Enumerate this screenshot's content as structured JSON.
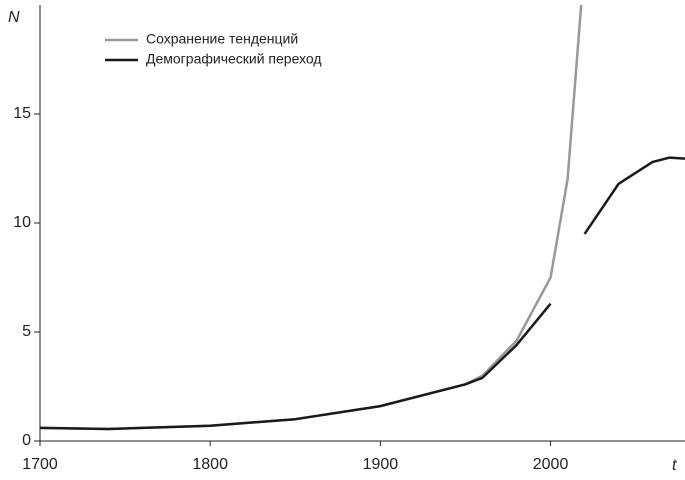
{
  "chart_data": {
    "type": "line",
    "x_label": "t",
    "y_label": "N",
    "x": [
      1700,
      1740,
      1800,
      1850,
      1900,
      1950,
      1960,
      1980,
      2000,
      2010,
      2015,
      2018,
      2020,
      2040,
      2060,
      2070,
      2079
    ],
    "series": [
      {
        "name": "Сохранение тенденций",
        "color": "#999999",
        "values": [
          0.6,
          0.55,
          0.7,
          1.0,
          1.6,
          2.6,
          3.0,
          4.6,
          7.5,
          12,
          17,
          20,
          null,
          null,
          null,
          null,
          null
        ]
      },
      {
        "name": "Демографический переход",
        "color": "#1a1a1a",
        "values": [
          0.6,
          0.55,
          0.7,
          1.0,
          1.6,
          2.6,
          2.9,
          4.4,
          6.3,
          null,
          null,
          null,
          9.5,
          11.8,
          12.8,
          13.0,
          12.95
        ]
      }
    ],
    "xlim": [
      1700,
      2079
    ],
    "xticks": [
      1700,
      1800,
      1900,
      2000
    ],
    "ylim": [
      0,
      20
    ],
    "yticks": [
      0,
      5,
      10,
      15
    ],
    "legend": "upper left"
  }
}
